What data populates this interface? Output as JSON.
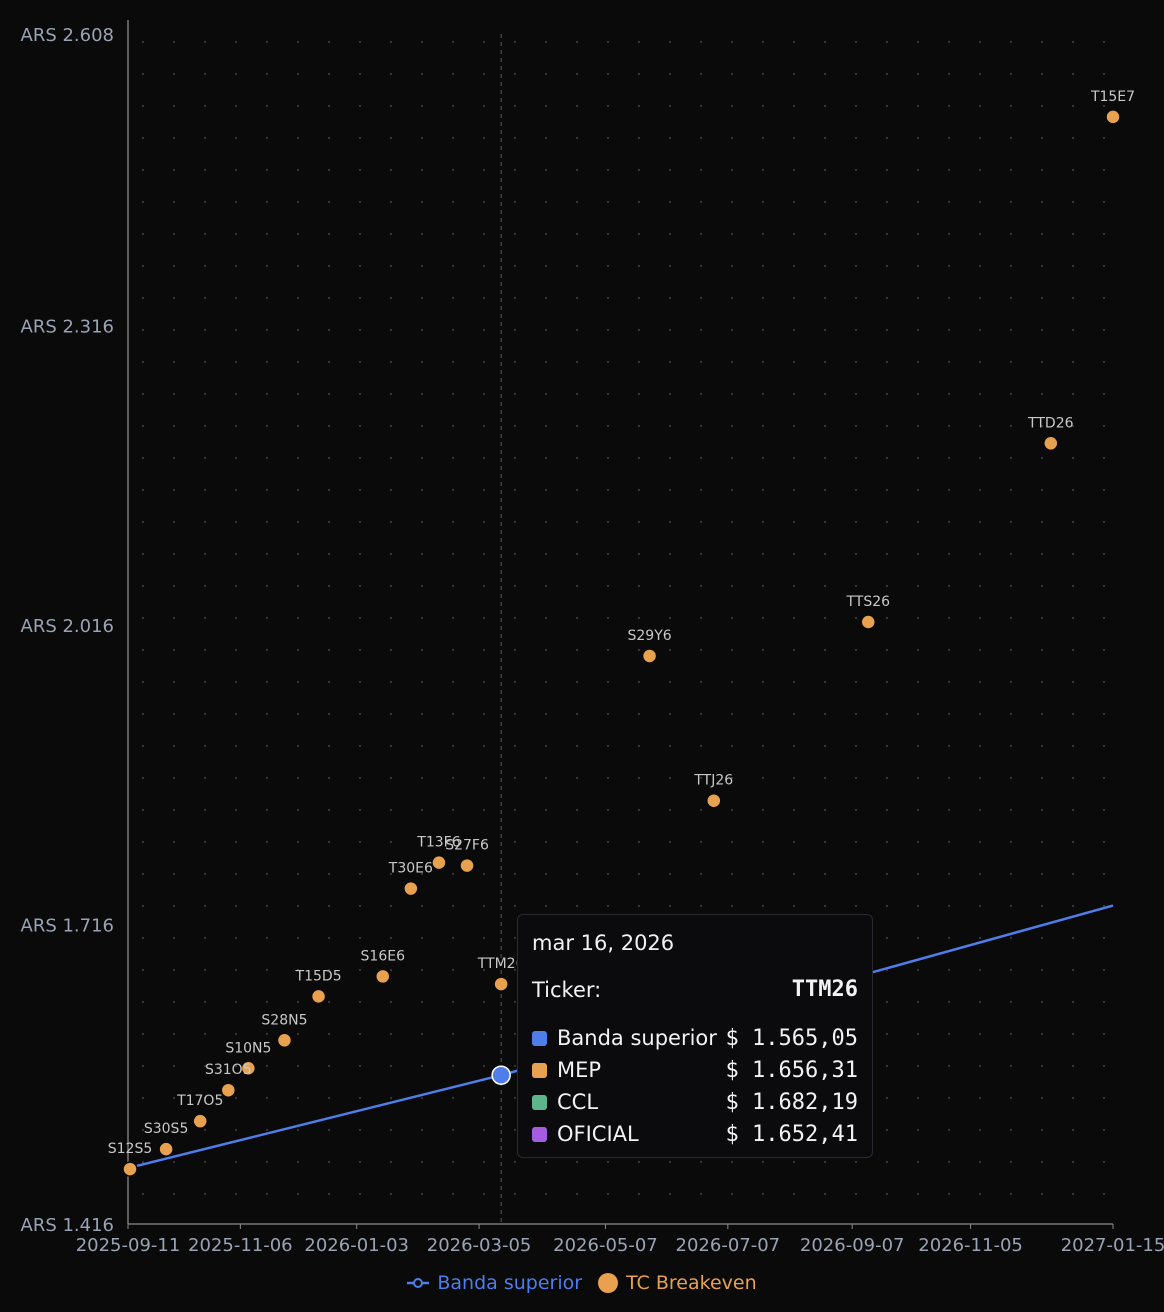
{
  "colors": {
    "background": "#0a0a0a",
    "axis": "#8a8a8a",
    "grid_dot": "#3a3a3a",
    "tick_text": "#9aa3b5",
    "point_label": "#c8c8c8",
    "banda": "#4f7de9",
    "mep": "#e8a14f",
    "ccl": "#5db58c",
    "oficial": "#a45de0"
  },
  "chart_data": {
    "type": "scatter",
    "x_type": "date",
    "xlim": [
      "2025-09-11",
      "2027-01-15"
    ],
    "ylim": [
      1416,
      2608
    ],
    "grid": true,
    "x_ticks": [
      "2025-09-11",
      "2025-11-06",
      "2026-01-03",
      "2026-03-05",
      "2026-05-07",
      "2026-07-07",
      "2026-09-07",
      "2026-11-05",
      "2027-01-15"
    ],
    "y_ticks": [
      {
        "value": 1416,
        "label": "ARS 1.416"
      },
      {
        "value": 1716,
        "label": "ARS 1.716"
      },
      {
        "value": 2016,
        "label": "ARS 2.016"
      },
      {
        "value": 2316,
        "label": "ARS 2.316"
      },
      {
        "value": 2608,
        "label": "ARS 2.608"
      }
    ],
    "series": [
      {
        "name": "Banda superior",
        "type": "line",
        "color": "#4f7de9",
        "points": [
          {
            "x": "2025-09-11",
            "y": 1472
          },
          {
            "x": "2026-03-16",
            "y": 1565.05
          },
          {
            "x": "2027-01-15",
            "y": 1735
          }
        ]
      },
      {
        "name": "TC Breakeven",
        "type": "scatter",
        "color": "#e8a14f",
        "points": [
          {
            "label": "S12S5",
            "x": "2025-09-12",
            "y": 1471
          },
          {
            "label": "S30S5",
            "x": "2025-09-30",
            "y": 1491
          },
          {
            "label": "T17O5",
            "x": "2025-10-17",
            "y": 1519
          },
          {
            "label": "S31O5",
            "x": "2025-10-31",
            "y": 1550
          },
          {
            "label": "S10N5",
            "x": "2025-11-10",
            "y": 1572
          },
          {
            "label": "S28N5",
            "x": "2025-11-28",
            "y": 1600
          },
          {
            "label": "T15D5",
            "x": "2025-12-15",
            "y": 1644
          },
          {
            "label": "S16E6",
            "x": "2026-01-16",
            "y": 1664
          },
          {
            "label": "T30E6",
            "x": "2026-01-30",
            "y": 1752
          },
          {
            "label": "T13F6",
            "x": "2026-02-13",
            "y": 1778
          },
          {
            "label": "S27F6",
            "x": "2026-02-27",
            "y": 1775
          },
          {
            "label": "TTM26",
            "x": "2026-03-16",
            "y": 1656.31
          },
          {
            "label": "S29Y6",
            "x": "2026-05-29",
            "y": 1985
          },
          {
            "label": "TTJ26",
            "x": "2026-06-30",
            "y": 1840
          },
          {
            "label": "TTS26",
            "x": "2026-09-15",
            "y": 2019
          },
          {
            "label": "TTD26",
            "x": "2026-12-15",
            "y": 2198
          },
          {
            "label": "T15E7",
            "x": "2027-01-15",
            "y": 2525
          }
        ]
      }
    ],
    "hover": {
      "x": "2026-03-16",
      "banda_y": 1565.05
    },
    "legend": {
      "position": "bottom-center",
      "items": [
        {
          "name": "Banda superior",
          "marker": "line-circle-icon",
          "color": "#4f7de9"
        },
        {
          "name": "TC Breakeven",
          "marker": "circle-icon",
          "color": "#e8a14f"
        }
      ]
    }
  },
  "tooltip": {
    "date": "mar 16, 2026",
    "ticker_label": "Ticker:",
    "ticker_value": "TTM26",
    "rows": [
      {
        "label": "Banda superior",
        "value": "$ 1.565,05",
        "color": "#4f7de9"
      },
      {
        "label": "MEP",
        "value": "$ 1.656,31",
        "color": "#e8a14f"
      },
      {
        "label": "CCL",
        "value": "$ 1.682,19",
        "color": "#5db58c"
      },
      {
        "label": "OFICIAL",
        "value": "$ 1.652,41",
        "color": "#a45de0"
      }
    ]
  }
}
